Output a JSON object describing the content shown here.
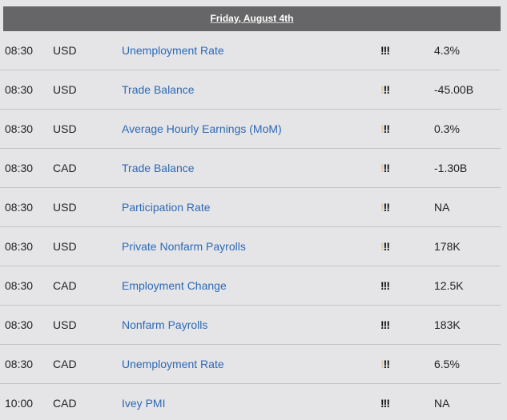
{
  "header": {
    "date": "Friday, August 4th"
  },
  "colors": {
    "header_bg": "#666668",
    "page_bg": "#e5e5e8",
    "event_link": "#2d69b3",
    "impact_active": "#111111",
    "impact_inactive": "#d8c8a6"
  },
  "events": [
    {
      "time": "08:30",
      "currency": "USD",
      "name": "Unemployment Rate",
      "impact": 3,
      "value": "4.3%"
    },
    {
      "time": "08:30",
      "currency": "USD",
      "name": "Trade Balance",
      "impact": 2,
      "value": "-45.00B"
    },
    {
      "time": "08:30",
      "currency": "USD",
      "name": "Average Hourly Earnings (MoM)",
      "impact": 2,
      "value": "0.3%"
    },
    {
      "time": "08:30",
      "currency": "CAD",
      "name": "Trade Balance",
      "impact": 2,
      "value": "-1.30B"
    },
    {
      "time": "08:30",
      "currency": "USD",
      "name": "Participation Rate",
      "impact": 2,
      "value": "NA"
    },
    {
      "time": "08:30",
      "currency": "USD",
      "name": "Private Nonfarm Payrolls",
      "impact": 2,
      "value": "178K"
    },
    {
      "time": "08:30",
      "currency": "CAD",
      "name": "Employment Change",
      "impact": 3,
      "value": "12.5K"
    },
    {
      "time": "08:30",
      "currency": "USD",
      "name": "Nonfarm Payrolls",
      "impact": 3,
      "value": "183K"
    },
    {
      "time": "08:30",
      "currency": "CAD",
      "name": "Unemployment Rate",
      "impact": 2,
      "value": "6.5%"
    },
    {
      "time": "10:00",
      "currency": "CAD",
      "name": "Ivey PMI",
      "impact": 3,
      "value": "NA"
    }
  ]
}
